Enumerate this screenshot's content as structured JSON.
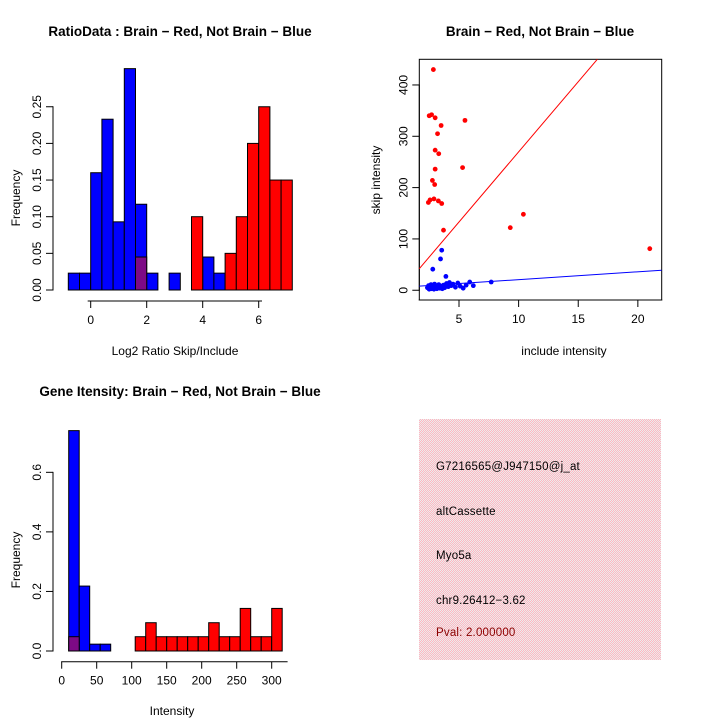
{
  "colors": {
    "red": "#ff0000",
    "blue": "#0000ff",
    "purple": "#7d0a86",
    "dark_red": "#8b0000",
    "black": "#000000",
    "pink_base": "#ececec",
    "pink_checker": "#ffb6c1",
    "axis": "#000000",
    "background": "#ffffff"
  },
  "chart_data": [
    {
      "id": "ratio-histogram",
      "type": "bar",
      "title": "RatioData : Brain − Red, Not Brain − Blue",
      "xlabel": "Log2 Ratio Skip/Include",
      "ylabel": "Frequency",
      "bin_width": 0.4,
      "xlim": [
        -1,
        7.4
      ],
      "ylim": [
        0,
        0.302
      ],
      "x_ticks": [
        {
          "v": 0,
          "t": "0"
        },
        {
          "v": 2,
          "t": "2"
        },
        {
          "v": 4,
          "t": "4"
        },
        {
          "v": 6,
          "t": "6"
        }
      ],
      "y_ticks": [
        {
          "v": 0,
          "t": "0.00"
        },
        {
          "v": 0.05,
          "t": "0.05"
        },
        {
          "v": 0.1,
          "t": "0.10"
        },
        {
          "v": 0.15,
          "t": "0.15"
        },
        {
          "v": 0.2,
          "t": "0.20"
        },
        {
          "v": 0.25,
          "t": "0.25"
        }
      ],
      "series": [
        {
          "name": "Not Brain",
          "color": "blue",
          "bins": [
            {
              "x": -0.8,
              "h": 0.023
            },
            {
              "x": -0.4,
              "h": 0.023
            },
            {
              "x": 0.0,
              "h": 0.16
            },
            {
              "x": 0.4,
              "h": 0.233
            },
            {
              "x": 0.8,
              "h": 0.093
            },
            {
              "x": 1.2,
              "h": 0.302
            },
            {
              "x": 1.6,
              "h": 0.117
            },
            {
              "x": 2.0,
              "h": 0.023
            },
            {
              "x": 2.8,
              "h": 0.023
            },
            {
              "x": 4.0,
              "h": 0.045
            },
            {
              "x": 4.4,
              "h": 0.023
            }
          ]
        },
        {
          "name": "Brain",
          "color": "red",
          "bins": [
            {
              "x": 3.6,
              "h": 0.1
            },
            {
              "x": 4.8,
              "h": 0.05
            },
            {
              "x": 5.2,
              "h": 0.1
            },
            {
              "x": 5.6,
              "h": 0.2
            },
            {
              "x": 6.0,
              "h": 0.25
            },
            {
              "x": 6.4,
              "h": 0.15
            },
            {
              "x": 6.8,
              "h": 0.15
            }
          ]
        },
        {
          "name": "overlap",
          "color": "purple",
          "bins": [
            {
              "x": 1.6,
              "h": 0.045
            }
          ]
        }
      ]
    },
    {
      "id": "intensity-scatter",
      "type": "scatter",
      "title": "Brain − Red, Not Brain − Blue",
      "xlabel": "include intensity",
      "ylabel": "skip intensity",
      "xlim": [
        1.67,
        22
      ],
      "ylim": [
        -19,
        450
      ],
      "x_ticks": [
        {
          "v": 5,
          "t": "5"
        },
        {
          "v": 10,
          "t": "10"
        },
        {
          "v": 15,
          "t": "15"
        },
        {
          "v": 20,
          "t": "20"
        }
      ],
      "y_ticks": [
        {
          "v": 0,
          "t": "0"
        },
        {
          "v": 100,
          "t": "100"
        },
        {
          "v": 200,
          "t": "200"
        },
        {
          "v": 300,
          "t": "300"
        },
        {
          "v": 400,
          "t": "400"
        }
      ],
      "series": [
        {
          "name": "Brain",
          "color": "red",
          "points": [
            [
              2.85,
              430
            ],
            [
              2.5,
              340
            ],
            [
              2.7,
              342
            ],
            [
              3.0,
              336
            ],
            [
              3.5,
              321
            ],
            [
              5.5,
              331
            ],
            [
              3.2,
              305
            ],
            [
              3.0,
              273
            ],
            [
              3.3,
              266
            ],
            [
              3.0,
              236
            ],
            [
              5.3,
              239
            ],
            [
              2.77,
              214
            ],
            [
              2.96,
              206
            ],
            [
              2.43,
              171
            ],
            [
              2.57,
              176
            ],
            [
              2.9,
              178
            ],
            [
              3.27,
              174
            ],
            [
              3.55,
              169
            ],
            [
              3.7,
              117
            ],
            [
              9.3,
              122
            ],
            [
              10.4,
              148
            ],
            [
              21.0,
              81
            ]
          ]
        },
        {
          "name": "Not Brain",
          "color": "blue",
          "points": [
            [
              3.55,
              78
            ],
            [
              3.45,
              61
            ],
            [
              2.8,
              41
            ],
            [
              3.9,
              27
            ],
            [
              7.7,
              16
            ],
            [
              2.35,
              5
            ],
            [
              2.45,
              9
            ],
            [
              2.5,
              2
            ],
            [
              2.6,
              6
            ],
            [
              2.65,
              11
            ],
            [
              2.7,
              3
            ],
            [
              2.8,
              7
            ],
            [
              2.9,
              2
            ],
            [
              2.95,
              12
            ],
            [
              3.0,
              5
            ],
            [
              3.1,
              8
            ],
            [
              3.15,
              3
            ],
            [
              3.25,
              6
            ],
            [
              3.3,
              11
            ],
            [
              3.4,
              4
            ],
            [
              3.5,
              8
            ],
            [
              3.6,
              3
            ],
            [
              3.7,
              10
            ],
            [
              3.8,
              5
            ],
            [
              3.95,
              13
            ],
            [
              4.1,
              7
            ],
            [
              4.2,
              15
            ],
            [
              4.35,
              9
            ],
            [
              4.5,
              12
            ],
            [
              4.7,
              6
            ],
            [
              4.9,
              14
            ],
            [
              5.1,
              8
            ],
            [
              5.35,
              4
            ],
            [
              5.6,
              10
            ],
            [
              5.9,
              16
            ],
            [
              6.2,
              9
            ]
          ]
        }
      ],
      "lines": [
        {
          "name": "brain-fit",
          "color": "red",
          "x1": 1.67,
          "y1": 42,
          "x2": 16.6,
          "y2": 450
        },
        {
          "name": "notbrain-fit",
          "color": "blue",
          "x1": 1.67,
          "y1": 8,
          "x2": 22,
          "y2": 39
        }
      ]
    },
    {
      "id": "gene-intensity-histogram",
      "type": "bar",
      "title": "Gene Itensity: Brain − Red, Not Brain − Blue",
      "xlabel": "Intensity",
      "ylabel": "Frequency",
      "bin_width": 15,
      "xlim": [
        0,
        330
      ],
      "ylim": [
        0,
        0.74
      ],
      "x_ticks": [
        {
          "v": 0,
          "t": "0"
        },
        {
          "v": 50,
          "t": "50"
        },
        {
          "v": 100,
          "t": "100"
        },
        {
          "v": 150,
          "t": "150"
        },
        {
          "v": 200,
          "t": "200"
        },
        {
          "v": 250,
          "t": "250"
        },
        {
          "v": 300,
          "t": "300"
        }
      ],
      "y_ticks": [
        {
          "v": 0,
          "t": "0.0"
        },
        {
          "v": 0.2,
          "t": "0.2"
        },
        {
          "v": 0.4,
          "t": "0.4"
        },
        {
          "v": 0.6,
          "t": "0.6"
        }
      ],
      "series": [
        {
          "name": "Not Brain",
          "color": "blue",
          "bins": [
            {
              "x": 10,
              "h": 0.74
            },
            {
              "x": 25,
              "h": 0.218
            },
            {
              "x": 40,
              "h": 0.023
            },
            {
              "x": 55,
              "h": 0.023
            }
          ]
        },
        {
          "name": "Brain",
          "color": "red",
          "bins": [
            {
              "x": 105,
              "h": 0.048
            },
            {
              "x": 120,
              "h": 0.095
            },
            {
              "x": 135,
              "h": 0.048
            },
            {
              "x": 150,
              "h": 0.048
            },
            {
              "x": 165,
              "h": 0.048
            },
            {
              "x": 180,
              "h": 0.048
            },
            {
              "x": 195,
              "h": 0.048
            },
            {
              "x": 210,
              "h": 0.095
            },
            {
              "x": 225,
              "h": 0.048
            },
            {
              "x": 240,
              "h": 0.048
            },
            {
              "x": 255,
              "h": 0.143
            },
            {
              "x": 270,
              "h": 0.048
            },
            {
              "x": 285,
              "h": 0.048
            },
            {
              "x": 300,
              "h": 0.143
            }
          ]
        },
        {
          "name": "overlap",
          "color": "purple",
          "bins": [
            {
              "x": 10,
              "h": 0.048
            }
          ]
        }
      ]
    },
    {
      "id": "info-panel",
      "type": "text",
      "lines": [
        {
          "text": "G7216565@J947150@j_at",
          "color": "black"
        },
        {
          "text": "altCassette",
          "color": "black"
        },
        {
          "text": "Myo5a",
          "color": "black"
        },
        {
          "text": "chr9.26412−3.62",
          "color": "black"
        },
        {
          "text": "Pval: 2.000000",
          "color": "dark_red"
        }
      ]
    }
  ]
}
